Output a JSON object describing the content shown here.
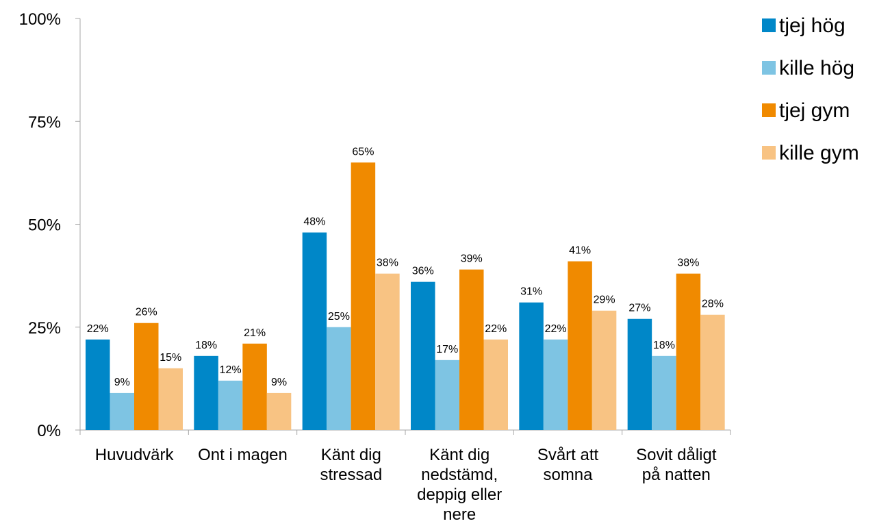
{
  "chart_data": {
    "type": "bar",
    "categories": [
      [
        "Huvudvärk"
      ],
      [
        "Ont i magen"
      ],
      [
        "Känt dig",
        "stressad"
      ],
      [
        "Känt dig",
        "nedstämd,",
        "deppig eller",
        "nere"
      ],
      [
        "Svårt att",
        "somna"
      ],
      [
        "Sovit dåligt",
        "på natten"
      ]
    ],
    "series": [
      {
        "name": "tjej hög",
        "color": "#0087C8",
        "values": [
          22,
          18,
          48,
          36,
          31,
          27
        ]
      },
      {
        "name": "kille hög",
        "color": "#7EC4E3",
        "values": [
          9,
          12,
          25,
          17,
          22,
          18
        ]
      },
      {
        "name": "tjej gym",
        "color": "#F08A00",
        "values": [
          26,
          21,
          65,
          39,
          41,
          38
        ]
      },
      {
        "name": "kille gym",
        "color": "#F8C383",
        "values": [
          15,
          9,
          38,
          22,
          29,
          28
        ]
      }
    ],
    "data_labels": [
      [
        "22%",
        "18%",
        "48%",
        "36%",
        "31%",
        "27%"
      ],
      [
        "9%",
        "12%",
        "25%",
        "17%",
        "22%",
        "18%"
      ],
      [
        "26%",
        "21%",
        "65%",
        "39%",
        "41%",
        "38%"
      ],
      [
        "15%",
        "9%",
        "38%",
        "22%",
        "29%",
        "28%"
      ]
    ],
    "ylim": [
      0,
      100
    ],
    "yticks": [
      0,
      25,
      50,
      75,
      100
    ],
    "ytick_labels": [
      "0%",
      "25%",
      "50%",
      "75%",
      "100%"
    ],
    "title": "",
    "xlabel": "",
    "ylabel": "",
    "legend": "right",
    "grid": false
  }
}
